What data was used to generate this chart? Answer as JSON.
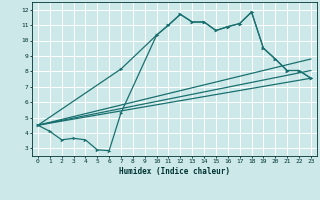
{
  "xlabel": "Humidex (Indice chaleur)",
  "bg_color": "#cce8e8",
  "grid_color": "#ffffff",
  "line_color": "#1a7070",
  "xlim": [
    -0.5,
    23.5
  ],
  "ylim": [
    2.5,
    12.5
  ],
  "xticks": [
    0,
    1,
    2,
    3,
    4,
    5,
    6,
    7,
    8,
    9,
    10,
    11,
    12,
    13,
    14,
    15,
    16,
    17,
    18,
    19,
    20,
    21,
    22,
    23
  ],
  "yticks": [
    3,
    4,
    5,
    6,
    7,
    8,
    9,
    10,
    11,
    12
  ],
  "line1_x": [
    0,
    1,
    2,
    3,
    4,
    5,
    6,
    7,
    10,
    11,
    12,
    13,
    14,
    15,
    16,
    17,
    18,
    19,
    20,
    21,
    22,
    23
  ],
  "line1_y": [
    4.5,
    4.1,
    3.55,
    3.65,
    3.55,
    2.9,
    2.85,
    5.3,
    10.35,
    11.0,
    11.7,
    11.2,
    11.2,
    10.65,
    10.9,
    11.1,
    11.85,
    9.5,
    8.8,
    8.05,
    8.05,
    7.55
  ],
  "line2_x": [
    0,
    7,
    10,
    11,
    12,
    13,
    14,
    15,
    16,
    17,
    18,
    19,
    20,
    21,
    22,
    23
  ],
  "line2_y": [
    4.5,
    8.15,
    10.35,
    11.0,
    11.7,
    11.2,
    11.2,
    10.65,
    10.9,
    11.1,
    11.85,
    9.5,
    8.8,
    8.05,
    8.05,
    7.55
  ],
  "line3_x": [
    0,
    23
  ],
  "line3_y": [
    4.5,
    7.55
  ],
  "line4_x": [
    0,
    23
  ],
  "line4_y": [
    4.5,
    8.05
  ],
  "line5_x": [
    0,
    23
  ],
  "line5_y": [
    4.5,
    8.8
  ]
}
